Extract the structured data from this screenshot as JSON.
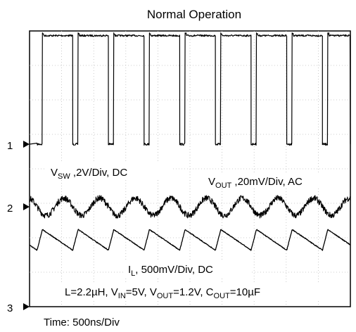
{
  "chart_data": {
    "type": "line",
    "title": "Normal Operation",
    "x_unit": "ns",
    "x_scale_label": "Time: 500ns/Div",
    "x_range": [
      0,
      5000
    ],
    "channels": [
      {
        "marker": "1",
        "name_main": "V",
        "name_sub": "SW",
        "rest": " ,2V/Div, DC",
        "description": "switch node square wave, ~6.3V high, ~0V low, ~85% duty",
        "period_ns": 556,
        "high_V": 6.3,
        "low_V": 0.0
      },
      {
        "marker": "2",
        "name_main": "V",
        "name_sub": "OUT",
        "rest": " ,20mV/Div, AC",
        "description": "output ripple, roughly sinusoidal, ~10mV p-p",
        "ripple_mV_pp": 10
      },
      {
        "marker": "3",
        "name_main": "I",
        "name_sub": "L",
        "rest": ", 500mV/Div, DC",
        "description": "inductor current triangle wave",
        "ripple_div": 0.6
      }
    ],
    "conditions": {
      "p1": "L=2.2µH, V",
      "s1": "IN",
      "p2": "=5V, V",
      "s2": "OUT",
      "p3": "=1.2V, C",
      "s3": "OUT",
      "p4": "=10µF"
    },
    "grid": true
  }
}
